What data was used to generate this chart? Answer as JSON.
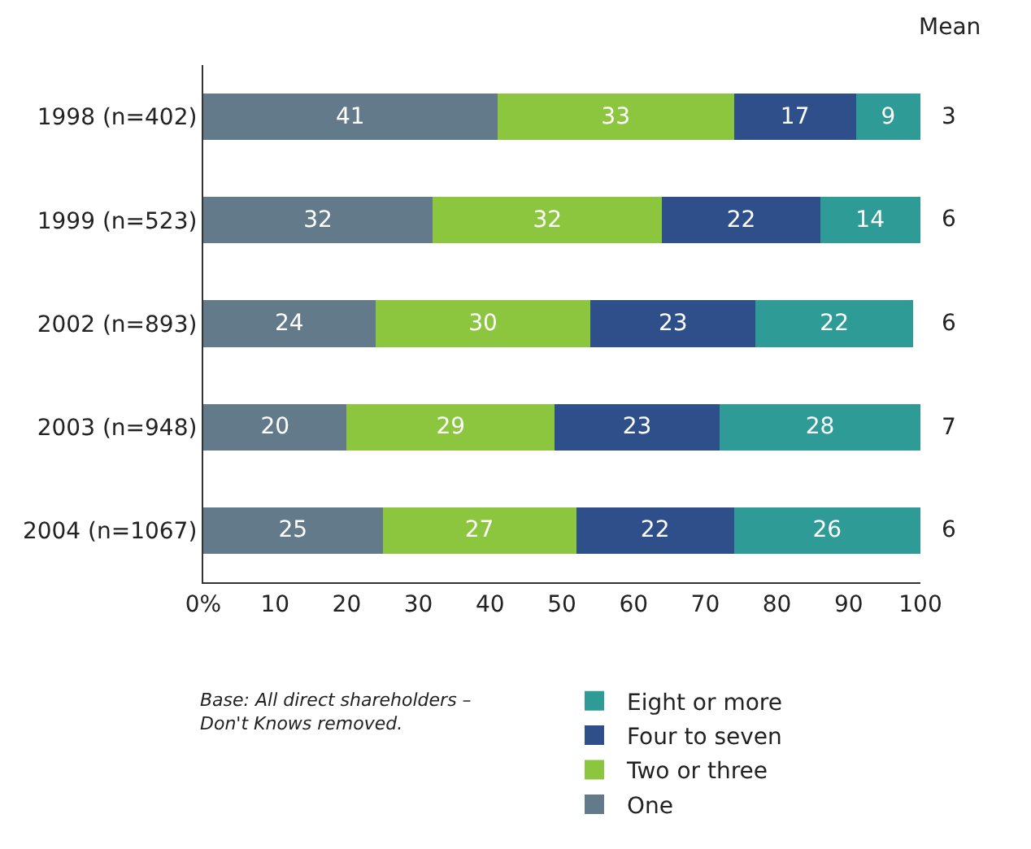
{
  "chart_data": {
    "type": "bar",
    "orientation": "horizontal",
    "stacked": true,
    "data_labels": true,
    "categories": [
      "1998 (n=402)",
      "1999 (n=523)",
      "2002 (n=893)",
      "2003 (n=948)",
      "2004 (n=1067)"
    ],
    "series": [
      {
        "name": "One",
        "color": "#637a8a",
        "values": [
          41,
          32,
          24,
          20,
          25
        ]
      },
      {
        "name": "Two or three",
        "color": "#8cc63e",
        "values": [
          33,
          32,
          30,
          29,
          27
        ]
      },
      {
        "name": "Four to seven",
        "color": "#2e4f8a",
        "values": [
          17,
          22,
          23,
          23,
          22
        ]
      },
      {
        "name": "Eight or more",
        "color": "#2e9b96",
        "values": [
          9,
          14,
          22,
          28,
          26
        ]
      }
    ],
    "xlim": [
      0,
      100
    ],
    "xticks": [
      {
        "value": 0,
        "label": "0%"
      },
      10,
      20,
      30,
      40,
      50,
      60,
      70,
      80,
      90,
      100
    ],
    "grid": false,
    "legend": "bottom",
    "annotations": [
      "Mean",
      "3",
      "6",
      "6",
      "7",
      "6",
      "Base: All direct shareholders –\nDon't Knows removed."
    ]
  }
}
